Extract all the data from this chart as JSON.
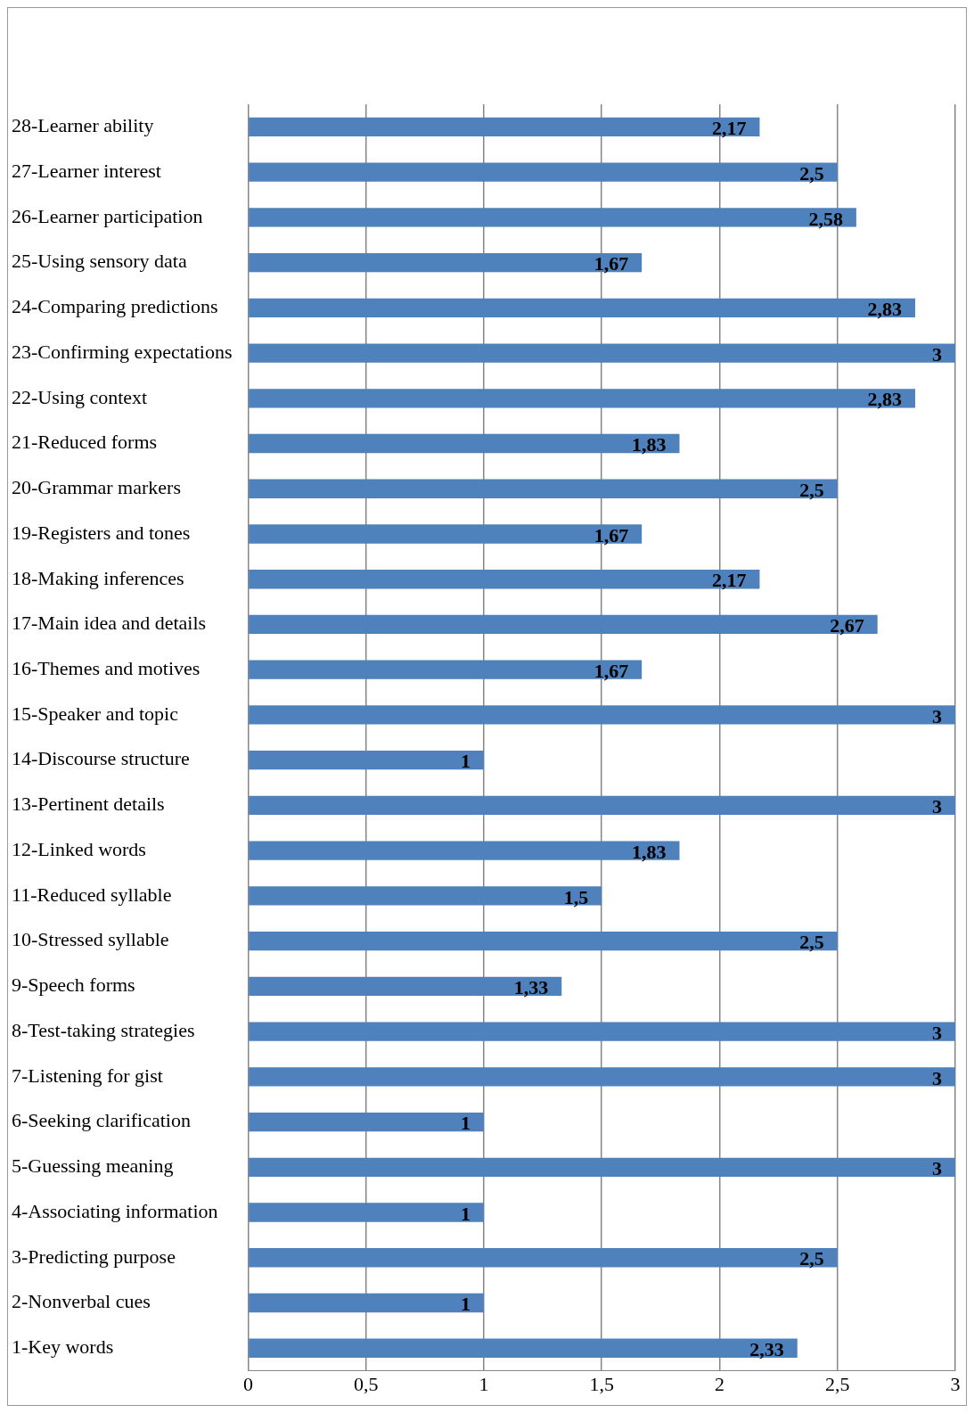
{
  "chart_data": {
    "type": "bar",
    "orientation": "horizontal",
    "categories": [
      "28-Learner ability",
      "27-Learner interest",
      "26-Learner participation",
      "25-Using sensory data",
      "24-Comparing predictions",
      "23-Confirming expectations",
      "22-Using context",
      "21-Reduced forms",
      "20-Grammar markers",
      "19-Registers and tones",
      "18-Making inferences",
      "17-Main idea and details",
      "16-Themes and motives",
      "15-Speaker and topic",
      "14-Discourse structure",
      "13-Pertinent details",
      "12-Linked words",
      "11-Reduced syllable",
      "10-Stressed syllable",
      "9-Speech forms",
      "8-Test-taking strategies",
      "7-Listening for gist",
      "6-Seeking clarification",
      "5-Guessing meaning",
      "4-Associating information",
      "3-Predicting purpose",
      "2-Nonverbal cues",
      "1-Key words"
    ],
    "values": [
      2.17,
      2.5,
      2.58,
      1.67,
      2.83,
      3,
      2.83,
      1.83,
      2.5,
      1.67,
      2.17,
      2.67,
      1.67,
      3,
      1,
      3,
      1.83,
      1.5,
      2.5,
      1.33,
      3,
      3,
      1,
      3,
      1,
      2.5,
      1,
      2.33
    ],
    "value_labels": [
      "2,17",
      "2,5",
      "2,58",
      "1,67",
      "2,83",
      "3",
      "2,83",
      "1,83",
      "2,5",
      "1,67",
      "2,17",
      "2,67",
      "1,67",
      "3",
      "1",
      "3",
      "1,83",
      "1,5",
      "2,5",
      "1,33",
      "3",
      "3",
      "1",
      "3",
      "1",
      "2,5",
      "1",
      "2,33"
    ],
    "color": "#4f81bd",
    "xlim": [
      0,
      3
    ],
    "xticks": [
      0,
      {
        "value": 0.5,
        "label": "0,5"
      },
      1,
      {
        "value": 1.5,
        "label": "1,5"
      },
      2,
      {
        "value": 2.5,
        "label": "2,5"
      },
      3
    ],
    "grid": "x",
    "legend": false
  }
}
